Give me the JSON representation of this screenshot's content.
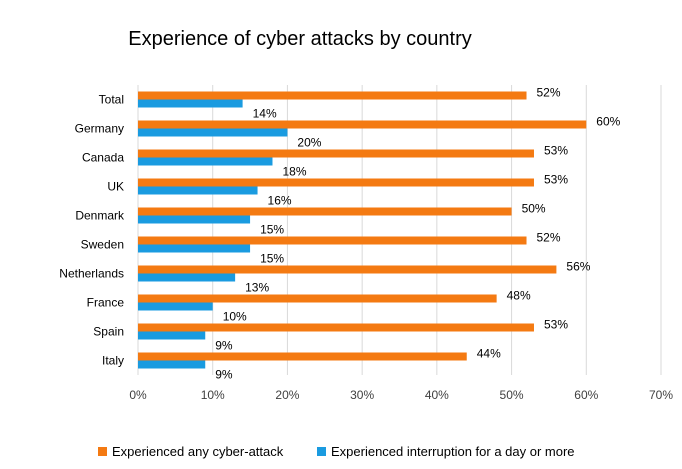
{
  "chart_data": {
    "type": "bar",
    "orientation": "horizontal",
    "title": "Experience of cyber attacks by country",
    "categories": [
      "Total",
      "Germany",
      "Canada",
      "UK",
      "Denmark",
      "Sweden",
      "Netherlands",
      "France",
      "Spain",
      "Italy"
    ],
    "series": [
      {
        "name": "Experienced any cyber-attack",
        "color": "#F47A12",
        "values": [
          52,
          60,
          53,
          53,
          50,
          52,
          56,
          48,
          53,
          44
        ]
      },
      {
        "name": "Experienced interruption for a day or more",
        "color": "#1A9BE0",
        "values": [
          14,
          20,
          18,
          16,
          15,
          15,
          13,
          10,
          9,
          9
        ]
      }
    ],
    "value_format": "percent",
    "xlim": [
      0,
      70
    ],
    "xticks": [
      "0%",
      "10%",
      "20%",
      "30%",
      "40%",
      "50%",
      "60%",
      "70%"
    ],
    "xtick_values": [
      0,
      10,
      20,
      30,
      40,
      50,
      60,
      70
    ],
    "grid": true,
    "legend_position": "bottom"
  }
}
